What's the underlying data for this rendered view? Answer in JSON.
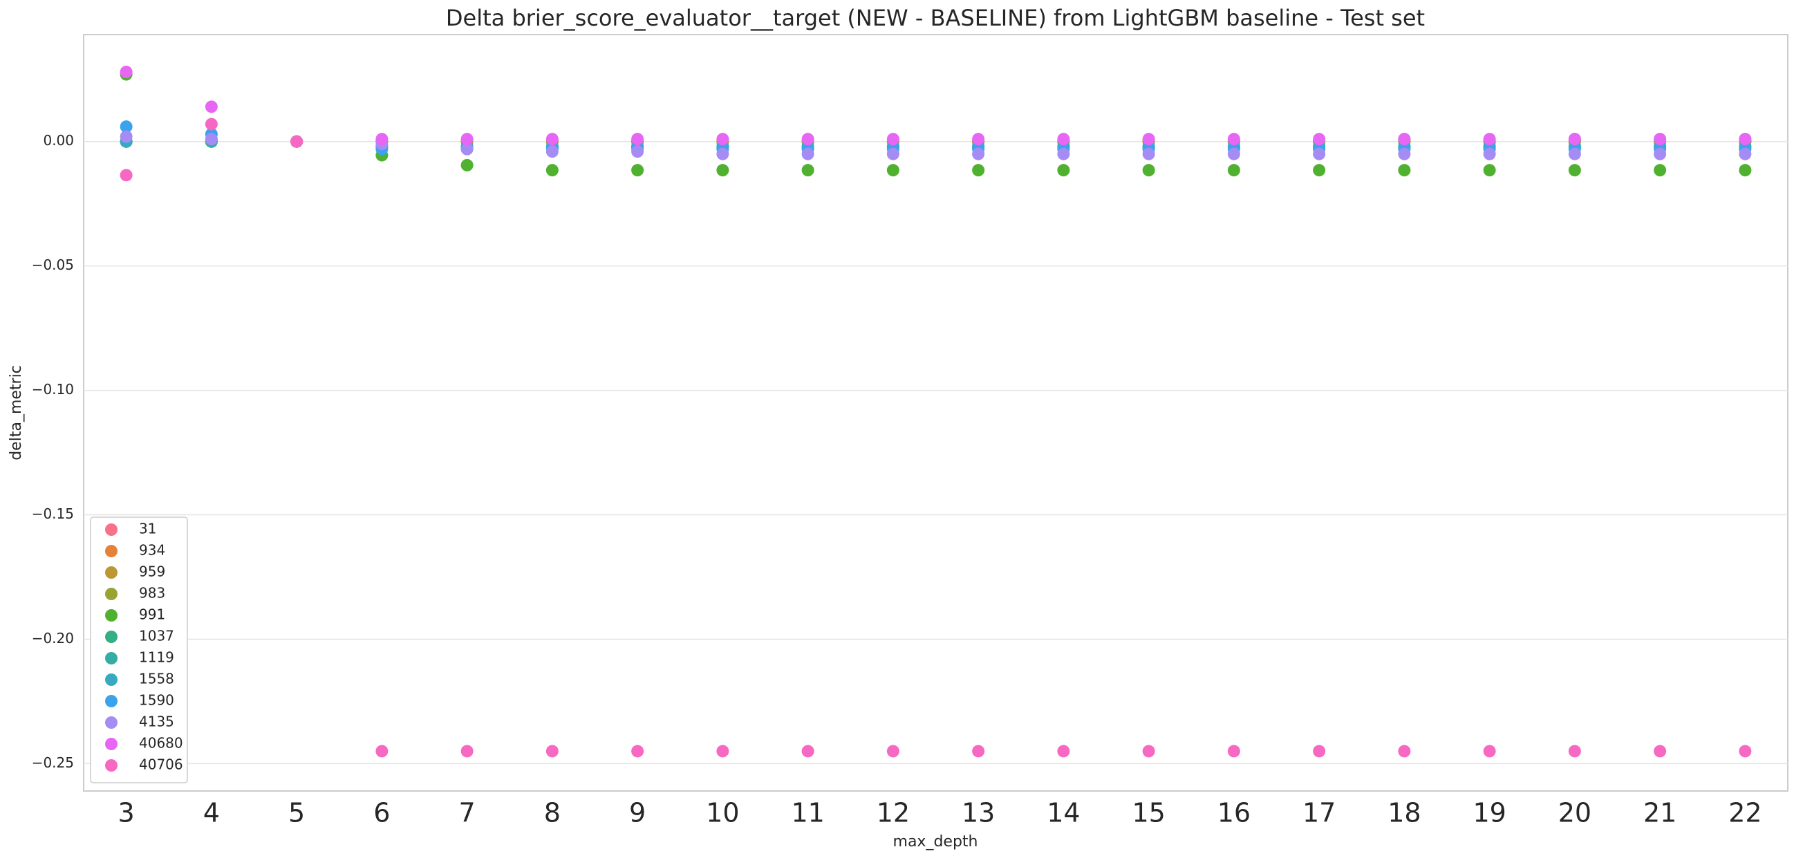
{
  "chart_data": {
    "type": "scatter",
    "title": "Delta brier_score_evaluator__target (NEW - BASELINE) from LightGBM baseline - Test set",
    "x_label": "max_depth",
    "y_label": "delta_metric",
    "categories": [
      "3",
      "4",
      "5",
      "6",
      "7",
      "8",
      "9",
      "10",
      "11",
      "12",
      "13",
      "14",
      "15",
      "16",
      "17",
      "18",
      "19",
      "20",
      "21",
      "22"
    ],
    "ylim": [
      -0.261,
      0.043
    ],
    "yticks": [
      {
        "value": -0.25,
        "label": "−0.25"
      },
      {
        "value": -0.2,
        "label": "−0.20"
      },
      {
        "value": -0.15,
        "label": "−0.15"
      },
      {
        "value": -0.1,
        "label": "−0.10"
      },
      {
        "value": -0.05,
        "label": "−0.05"
      },
      {
        "value": 0,
        "label": "0.00"
      }
    ],
    "grid": true,
    "legend": "lower left",
    "series": [
      {
        "name": "31",
        "color": "#f77189",
        "values": [
          0,
          0,
          0,
          0,
          0,
          0,
          0,
          0,
          0,
          0,
          0,
          0,
          0,
          0,
          0,
          0,
          0,
          0,
          0,
          0
        ]
      },
      {
        "name": "934",
        "color": "#e5823a",
        "values": [
          0,
          0,
          0,
          0,
          0,
          0,
          0,
          0,
          0,
          0,
          0,
          0,
          0,
          0,
          0,
          0,
          0,
          0,
          0,
          0
        ]
      },
      {
        "name": "959",
        "color": "#bb9832",
        "values": [
          0,
          0,
          0,
          0,
          0,
          0,
          0,
          0,
          0,
          0,
          0,
          0,
          0,
          0,
          0,
          0,
          0,
          0,
          0,
          0
        ]
      },
      {
        "name": "983",
        "color": "#97a431",
        "values": [
          0,
          0,
          0,
          0,
          0,
          0,
          0,
          0,
          0,
          0,
          0,
          0,
          0,
          0,
          0,
          0,
          0,
          0,
          0,
          0
        ]
      },
      {
        "name": "991",
        "color": "#50b131",
        "values": [
          0.027,
          0,
          0,
          -0.0055,
          -0.0095,
          -0.0115,
          -0.0115,
          -0.0115,
          -0.0115,
          -0.0115,
          -0.0115,
          -0.0115,
          -0.0115,
          -0.0115,
          -0.0115,
          -0.0115,
          -0.0115,
          -0.0115,
          -0.0115,
          -0.0115
        ]
      },
      {
        "name": "1037",
        "color": "#34af84",
        "values": [
          0,
          0,
          0,
          -0.002,
          -0.002,
          -0.002,
          -0.002,
          -0.002,
          -0.002,
          -0.002,
          -0.002,
          -0.002,
          -0.002,
          -0.002,
          -0.002,
          -0.002,
          -0.002,
          -0.002,
          -0.002,
          -0.002
        ]
      },
      {
        "name": "1119",
        "color": "#36ada4",
        "values": [
          0,
          0,
          0,
          -0.002,
          -0.002,
          -0.002,
          -0.002,
          -0.002,
          -0.002,
          -0.002,
          -0.002,
          -0.002,
          -0.002,
          -0.002,
          -0.002,
          -0.002,
          -0.002,
          -0.002,
          -0.002,
          -0.002
        ]
      },
      {
        "name": "1558",
        "color": "#38aabf",
        "values": [
          0,
          0.001,
          0,
          -0.002,
          -0.002,
          -0.002,
          -0.002,
          -0.002,
          -0.002,
          -0.002,
          -0.002,
          -0.002,
          -0.002,
          -0.002,
          -0.002,
          0.001,
          -0.002,
          0.001,
          0.001,
          0.001
        ]
      },
      {
        "name": "1590",
        "color": "#3ba3ec",
        "values": [
          0.006,
          0.003,
          0,
          -0.003,
          -0.003,
          -0.003,
          -0.003,
          -0.003,
          -0.003,
          -0.003,
          -0.003,
          -0.003,
          -0.003,
          -0.003,
          -0.003,
          -0.003,
          -0.003,
          -0.003,
          -0.003,
          -0.003
        ]
      },
      {
        "name": "4135",
        "color": "#a48cf4",
        "values": [
          0.002,
          0.001,
          0,
          -0.001,
          -0.003,
          -0.004,
          -0.004,
          -0.005,
          -0.005,
          -0.005,
          -0.005,
          -0.005,
          -0.005,
          -0.005,
          -0.005,
          -0.005,
          -0.005,
          -0.005,
          -0.005,
          -0.005
        ]
      },
      {
        "name": "40680",
        "color": "#e866f4",
        "values": [
          0.028,
          0.014,
          0,
          0.001,
          0.001,
          0.001,
          0.001,
          0.001,
          0.001,
          0.001,
          0.001,
          0.001,
          0.001,
          0.001,
          0.001,
          0.001,
          0.001,
          0.001,
          0.001,
          0.001
        ]
      },
      {
        "name": "40706",
        "color": "#f668c2",
        "values": [
          -0.0135,
          0.007,
          0,
          -0.245,
          -0.245,
          -0.245,
          -0.245,
          -0.245,
          -0.245,
          -0.245,
          -0.245,
          -0.245,
          -0.245,
          -0.245,
          -0.245,
          -0.245,
          -0.245,
          -0.245,
          -0.245,
          -0.245
        ]
      }
    ]
  }
}
